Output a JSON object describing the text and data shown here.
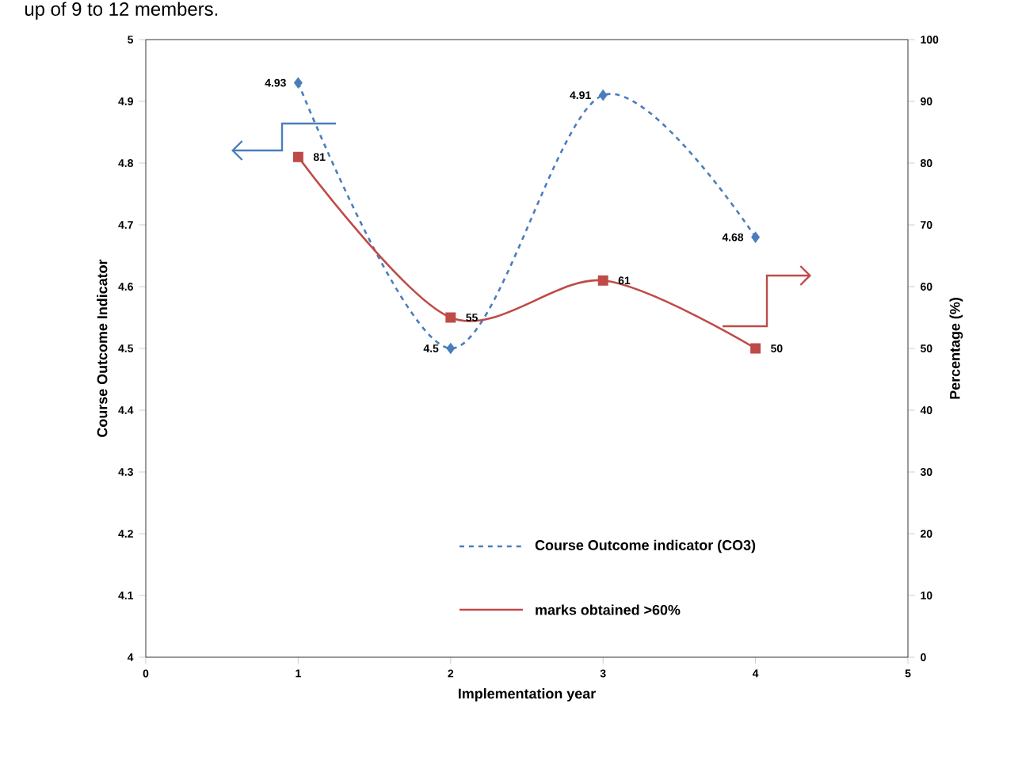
{
  "chart_data": {
    "type": "line",
    "xlabel": "Implementation year",
    "ylabel": "Course Outcome Indicator",
    "y2label": "Percentage (%)",
    "annotations": [
      "up of 9 to 12 members."
    ],
    "x": [
      1,
      2,
      3,
      4
    ],
    "series": [
      {
        "name": "Course Outcome indicator (CO3)",
        "color": "#4a7ebb",
        "values": [
          4.93,
          4.5,
          4.91,
          4.68
        ],
        "marker": "diamond",
        "line_style": "dashed"
      },
      {
        "name": "marks obtained >60%",
        "color": "#be4b48",
        "values": [
          81,
          55,
          61,
          50
        ],
        "marker": "square",
        "line_style": "solid",
        "axis": "y2"
      }
    ],
    "xlim": [
      0,
      5
    ],
    "xticks": [
      0,
      1,
      2,
      3,
      4,
      5
    ],
    "ylim": [
      4,
      5
    ],
    "yticks": [
      4,
      4.1,
      4.2,
      4.3,
      4.4,
      4.5,
      4.6,
      4.7,
      4.8,
      4.9,
      5
    ],
    "y2lim": [
      0,
      100
    ],
    "y2ticks": [
      0,
      10,
      20,
      30,
      40,
      50,
      60,
      70,
      80,
      90,
      100
    ],
    "data_labels": true,
    "legend": "bottom right",
    "grid": false
  }
}
